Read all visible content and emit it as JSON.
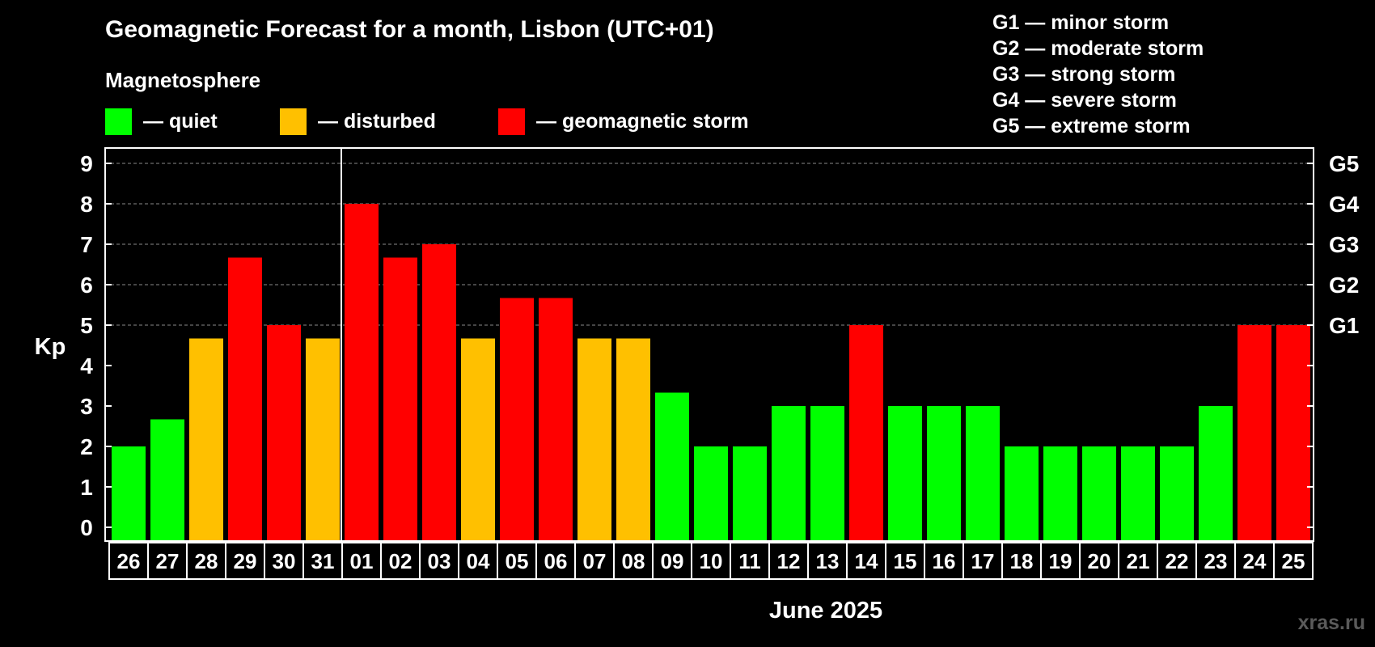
{
  "title": "Geomagnetic Forecast for a month, Lisbon (UTC+01)",
  "legend": {
    "heading": "Magnetosphere",
    "items": [
      {
        "label": "— quiet",
        "color": "#00ff00"
      },
      {
        "label": "— disturbed",
        "color": "#ffc000"
      },
      {
        "label": "— geomagnetic storm",
        "color": "#ff0000"
      }
    ]
  },
  "storm_scale": [
    "G1 — minor storm",
    "G2 — moderate storm",
    "G3 — strong storm",
    "G4 — severe storm",
    "G5 — extreme storm"
  ],
  "watermark": "xras.ru",
  "colors": {
    "quiet": "#00ff00",
    "disturbed": "#ffc000",
    "storm": "#ff0000",
    "background": "#000000"
  },
  "chart_data": {
    "type": "bar",
    "ylabel": "Kp",
    "xlabel": "June 2025",
    "ylim": [
      0,
      9
    ],
    "yticks": [
      "0",
      "1",
      "2",
      "3",
      "4",
      "5",
      "6",
      "7",
      "8",
      "9"
    ],
    "right_axis_labels": [
      {
        "kp": 5,
        "label": "G1"
      },
      {
        "kp": 6,
        "label": "G2"
      },
      {
        "kp": 7,
        "label": "G3"
      },
      {
        "kp": 8,
        "label": "G4"
      },
      {
        "kp": 9,
        "label": "G5"
      }
    ],
    "grid": "dashed horizontal at Kp 5–9",
    "month_boundary_after": "31",
    "categories": [
      "26",
      "27",
      "28",
      "29",
      "30",
      "31",
      "01",
      "02",
      "03",
      "04",
      "05",
      "06",
      "07",
      "08",
      "09",
      "10",
      "11",
      "12",
      "13",
      "14",
      "15",
      "16",
      "17",
      "18",
      "19",
      "20",
      "21",
      "22",
      "23",
      "24",
      "25"
    ],
    "values": [
      2,
      2.67,
      4.67,
      6.67,
      5,
      4.67,
      8,
      6.67,
      7,
      4.67,
      5.67,
      5.67,
      4.67,
      4.67,
      3.33,
      2,
      2,
      3,
      3,
      5,
      3,
      3,
      3,
      2,
      2,
      2,
      2,
      2,
      3,
      5,
      5
    ],
    "levels": [
      "quiet",
      "quiet",
      "disturbed",
      "storm",
      "storm",
      "disturbed",
      "storm",
      "storm",
      "storm",
      "disturbed",
      "storm",
      "storm",
      "disturbed",
      "disturbed",
      "quiet",
      "quiet",
      "quiet",
      "quiet",
      "quiet",
      "storm",
      "quiet",
      "quiet",
      "quiet",
      "quiet",
      "quiet",
      "quiet",
      "quiet",
      "quiet",
      "quiet",
      "storm",
      "storm"
    ]
  }
}
